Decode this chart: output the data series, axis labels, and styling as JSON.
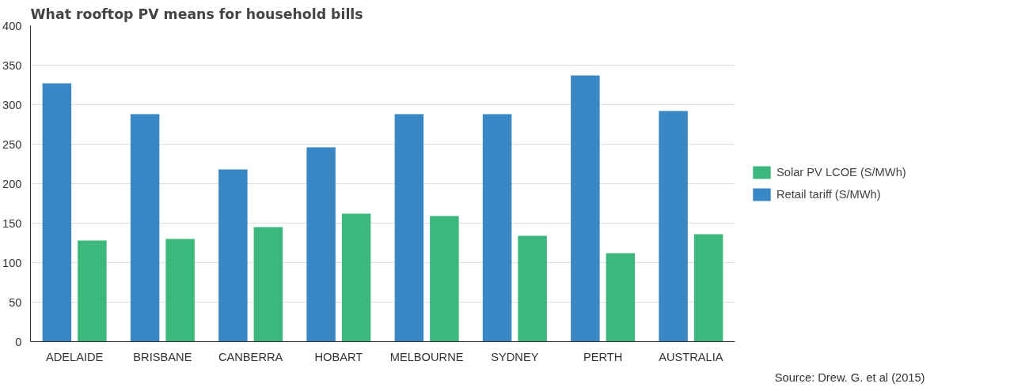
{
  "chart_data": {
    "type": "bar",
    "title": "What rooftop PV means for household bills",
    "categories": [
      "ADELAIDE",
      "BRISBANE",
      "CANBERRA",
      "HOBART",
      "MELBOURNE",
      "SYDNEY",
      "PERTH",
      "AUSTRALIA"
    ],
    "series": [
      {
        "name": "Retail tariff (S/MWh)",
        "color": "#3a87c6",
        "values": [
          327,
          288,
          218,
          246,
          288,
          288,
          337,
          292
        ]
      },
      {
        "name": "Solar PV LCOE (S/MWh)",
        "color": "#3cb87c",
        "values": [
          128,
          130,
          145,
          162,
          159,
          134,
          112,
          136
        ]
      }
    ],
    "ylim": [
      0,
      400
    ],
    "yticks": [
      0,
      50,
      100,
      150,
      200,
      250,
      300,
      350,
      400
    ],
    "grid": "y",
    "legend": "right",
    "annotations": [
      "Source: Drew. G. et al (2015)"
    ]
  }
}
